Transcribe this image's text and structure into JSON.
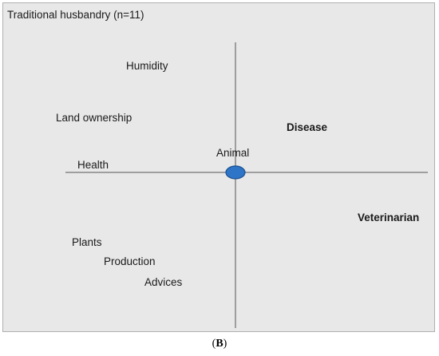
{
  "diagram": {
    "title": "Traditional husbandry (n=11)",
    "center_label": "Animal",
    "terms": {
      "humidity": "Humidity",
      "land_ownership": "Land ownership",
      "health": "Health",
      "disease": "Disease",
      "veterinarian": "Veterinarian",
      "plants": "Plants",
      "production": "Production",
      "advices": "Advices"
    },
    "colors": {
      "background": "#e8e8e8",
      "center_marker": "#2e75c7",
      "axis": "#555555"
    }
  },
  "caption": {
    "open": "(",
    "letter": "B",
    "close": ")"
  }
}
